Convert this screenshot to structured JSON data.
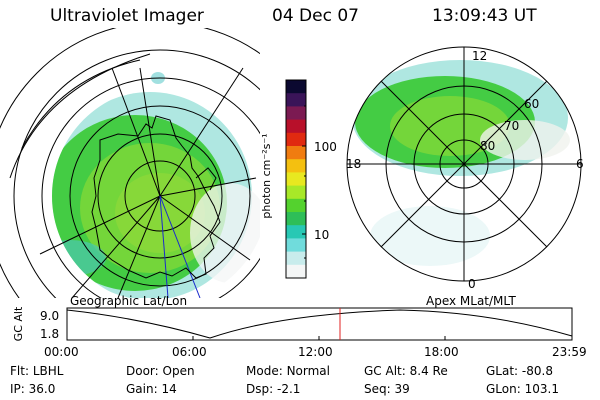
{
  "header": {
    "title": "Ultraviolet Imager",
    "date": "04 Dec 07",
    "time": "13:09:43 UT"
  },
  "panels": {
    "left_label": "Geographic Lat/Lon",
    "right_label": "Apex MLat/MLT",
    "mlt_labels": {
      "top": "12",
      "left": "18",
      "right": "6",
      "bottom": "0"
    },
    "mlat_labels": [
      "60",
      "70",
      "80"
    ]
  },
  "colorbar": {
    "unit": "photon cm⁻²s⁻¹",
    "ticks": [
      "100",
      "10"
    ],
    "colors": [
      "#0b0930",
      "#3a1458",
      "#7b1a52",
      "#b8102a",
      "#e02a10",
      "#f07c10",
      "#f4c010",
      "#e8e820",
      "#a8e828",
      "#54d22e",
      "#2ebe58",
      "#28c8b4",
      "#70dcdc",
      "#c8ecec",
      "#f4f6f6"
    ]
  },
  "timeline": {
    "ylabel": "GC Alt",
    "yticks": [
      "9.0",
      "1.8"
    ],
    "xticks": [
      "00:00",
      "06:00",
      "12:00",
      "18:00",
      "23:59"
    ],
    "current_time_marker": "13:09:43"
  },
  "info": {
    "row1": [
      {
        "label": "Flt:",
        "value": "LBHL"
      },
      {
        "label": "Door:",
        "value": "Open"
      },
      {
        "label": "Mode:",
        "value": "Normal"
      },
      {
        "label": "GC Alt:",
        "value": "8.4 Re"
      },
      {
        "label": "GLat:",
        "value": "-80.8"
      }
    ],
    "row2": [
      {
        "label": "IP:",
        "value": "36.0"
      },
      {
        "label": "Gain:",
        "value": "14"
      },
      {
        "label": "Dsp:",
        "value": "-2.1"
      },
      {
        "label": "Seq:",
        "value": "39"
      },
      {
        "label": "GLon:",
        "value": "103.1"
      }
    ]
  }
}
